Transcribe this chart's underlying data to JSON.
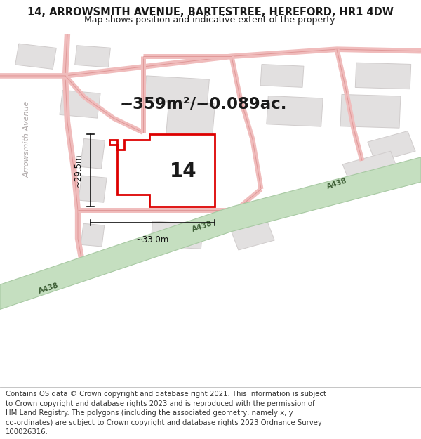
{
  "title_line1": "14, ARROWSMITH AVENUE, BARTESTREE, HEREFORD, HR1 4DW",
  "title_line2": "Map shows position and indicative extent of the property.",
  "area_label": "~359m²/~0.089ac.",
  "number_label": "14",
  "width_label": "~33.0m",
  "height_label": "~29.5m",
  "road_label_1": "A438",
  "road_label_2": "A438",
  "road_label_3": "A438",
  "street_label": "Arrowsmith Avenue",
  "map_bg": "#eeeded",
  "road_green_color": "#c5dfc0",
  "road_green_border": "#a8c9a3",
  "plot_color": "#dd0000",
  "building_fill": "#e2e0e0",
  "building_edge": "#d0cccc",
  "road_pink_color": "#f0bcbc",
  "road_pink_edge": "#e09898",
  "dim_color": "#111111",
  "text_color": "#1a1a1a",
  "title_fontsize": 10.5,
  "subtitle_fontsize": 9.0,
  "area_fontsize": 16.5,
  "number_fontsize": 20,
  "dim_fontsize": 8.5,
  "footer_fontsize": 7.3,
  "footer_lines": [
    "Contains OS data © Crown copyright and database right 2021. This information is subject",
    "to Crown copyright and database rights 2023 and is reproduced with the permission of",
    "HM Land Registry. The polygons (including the associated geometry, namely x, y",
    "co-ordinates) are subject to Crown copyright and database rights 2023 Ordnance Survey",
    "100026316."
  ]
}
